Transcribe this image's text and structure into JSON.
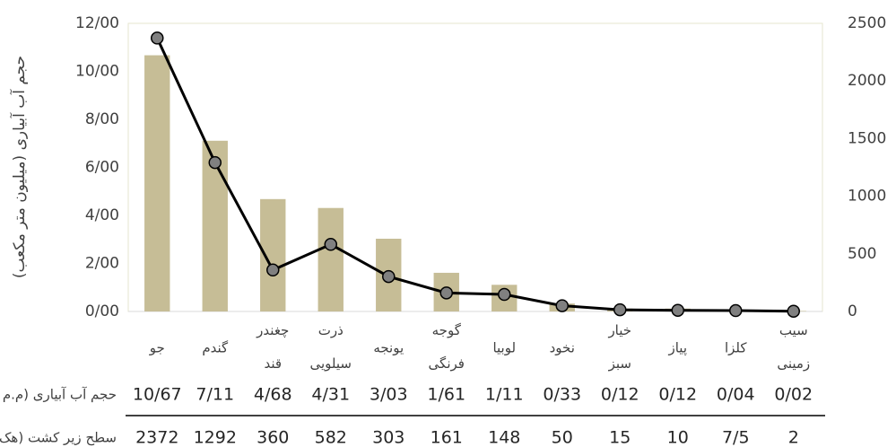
{
  "chart_data": {
    "type": "bar_line",
    "y_label": "حجم آب آبیاری (میلیون متر مکعب)",
    "categories": [
      "جو",
      "گندم",
      "چغندر قند",
      "ذرت سیلویی",
      "یونجه",
      "گوجه فرنگی",
      "لوبیا",
      "نخود",
      "خیار سبز",
      "پیاز",
      "کلزا",
      "سیب زمینی"
    ],
    "series": [
      {
        "name": "حجم آب آبیاری (م.م",
        "type": "bar",
        "color": "#c6bd96",
        "values": [
          10.67,
          7.11,
          4.68,
          4.31,
          3.03,
          1.61,
          1.11,
          0.33,
          0.12,
          0.12,
          0.04,
          0.02
        ],
        "value_labels": [
          "10/67",
          "7/11",
          "4/68",
          "4/31",
          "3/03",
          "1/61",
          "1/11",
          "0/33",
          "0/12",
          "0/12",
          "0/04",
          "0/02"
        ]
      },
      {
        "name": "سطح زیر کشت (هک",
        "type": "line",
        "axis": "y2",
        "color": "#000000",
        "marker_color": "#808080",
        "values": [
          2372,
          1292,
          360,
          582,
          303,
          161,
          148,
          50,
          15,
          10,
          7.5,
          2
        ],
        "value_labels": [
          "2372",
          "1292",
          "360",
          "582",
          "303",
          "161",
          "148",
          "50",
          "15",
          "10",
          "7/5",
          "2"
        ]
      }
    ],
    "ylim": [
      0,
      12
    ],
    "yticks": [
      {
        "value": 0,
        "label": "0/00"
      },
      {
        "value": 2,
        "label": "2/00"
      },
      {
        "value": 4,
        "label": "4/00"
      },
      {
        "value": 6,
        "label": "6/00"
      },
      {
        "value": 8,
        "label": "8/00"
      },
      {
        "value": 10,
        "label": "10/00"
      },
      {
        "value": 12,
        "label": "12/00"
      }
    ],
    "y2lim": [
      0,
      2500
    ],
    "y2ticks": [
      0,
      500,
      1000,
      1500,
      2000,
      2500
    ]
  }
}
